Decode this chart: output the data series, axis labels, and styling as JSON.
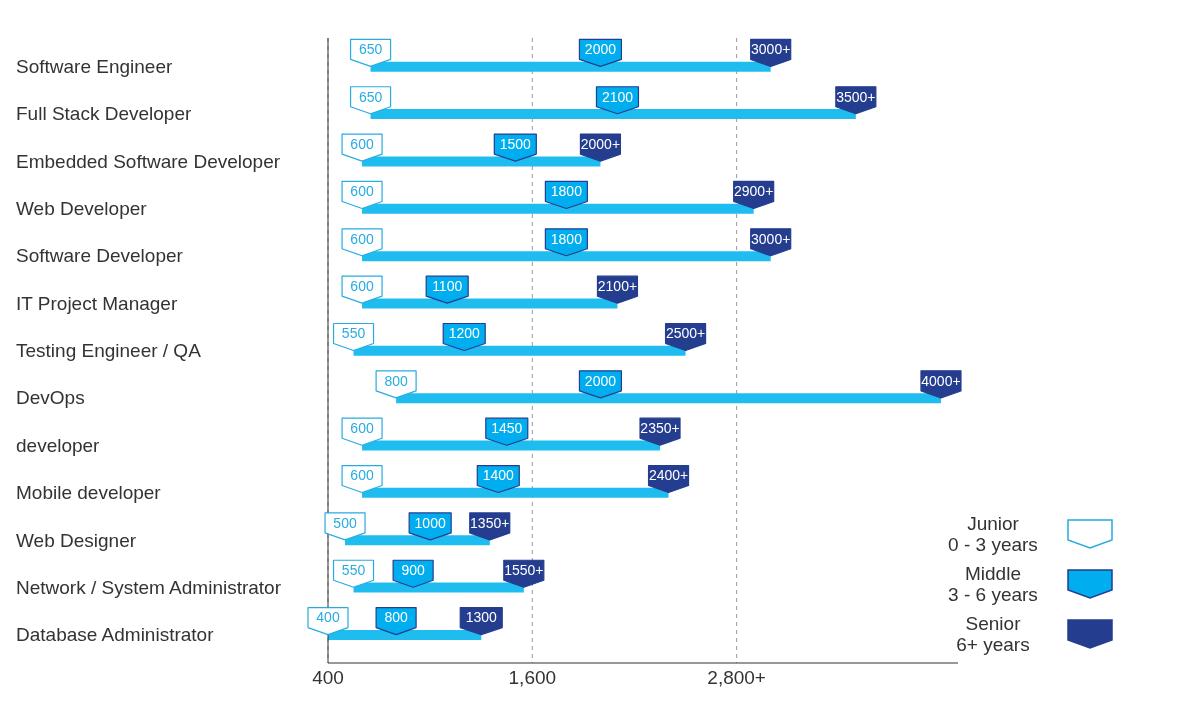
{
  "chart_data": {
    "type": "bar",
    "orientation": "horizontal",
    "categories": [
      "Software Engineer",
      "Full Stack Developer",
      "Embedded Software Developer",
      "Web Developer",
      "Software Developer",
      "IT Project Manager",
      "Testing Engineer / QA",
      "DevOps",
      "developer",
      "Mobile developer",
      "Web Designer",
      "Network / System Administrator",
      "Database Administrator"
    ],
    "series": [
      {
        "type": "bar",
        "color": "#1fbdef",
        "base": [
          650,
          650,
          600,
          600,
          600,
          600,
          550,
          800,
          600,
          600,
          500,
          550,
          400
        ],
        "values": [
          2350,
          2850,
          1400,
          2300,
          2400,
          1500,
          1950,
          3200,
          1750,
          1800,
          850,
          1000,
          900
        ]
      },
      {
        "type": "scatter",
        "name": "Junior\n0 - 3 years",
        "color": "#ffffff",
        "values": [
          650,
          650,
          600,
          600,
          600,
          600,
          550,
          800,
          600,
          600,
          500,
          550,
          400
        ],
        "value_labels": [
          "650",
          "650",
          "600",
          "600",
          "600",
          "600",
          "550",
          "800",
          "600",
          "600",
          "500",
          "550",
          "400"
        ]
      },
      {
        "type": "scatter",
        "name": "Middle\n3 - 6 years",
        "color": "#00aeef",
        "values": [
          2000,
          2100,
          1500,
          1800,
          1800,
          1100,
          1200,
          2000,
          1450,
          1400,
          1000,
          900,
          800
        ],
        "value_labels": [
          "2000",
          "2100",
          "1500",
          "1800",
          "1800",
          "1100",
          "1200",
          "2000",
          "1450",
          "1400",
          "1000",
          "900",
          "800"
        ]
      },
      {
        "type": "scatter",
        "name": "Senior\n6+ years",
        "color": "#253d8f",
        "values": [
          3000,
          3500,
          2000,
          2900,
          3000,
          2100,
          2500,
          4000,
          2350,
          2400,
          1350,
          1550,
          1300
        ],
        "value_labels": [
          null,
          null,
          null,
          null,
          null,
          null,
          null,
          null,
          null,
          null,
          null,
          null,
          "1300"
        ]
      }
    ],
    "annotations": [
      {
        "text": "3000+",
        "x": 3000,
        "y": "Software Engineer"
      },
      {
        "text": "3500+",
        "x": 3500,
        "y": "Full Stack Developer"
      },
      {
        "text": "2000+",
        "x": 2000,
        "y": "Embedded Software Developer"
      },
      {
        "text": "2900+",
        "x": 2900,
        "y": "Web Developer"
      },
      {
        "text": "3000+",
        "x": 3000,
        "y": "Software Developer"
      },
      {
        "text": "2100+",
        "x": 2100,
        "y": "IT Project Manager"
      },
      {
        "text": "2500+",
        "x": 2500,
        "y": "Testing Engineer / QA"
      },
      {
        "text": "4000+",
        "x": 4000,
        "y": "DevOps"
      },
      {
        "text": "2350+",
        "x": 2350,
        "y": "developer"
      },
      {
        "text": "2400+",
        "x": 2400,
        "y": "Mobile developer"
      },
      {
        "text": "1350+",
        "x": 1350,
        "y": "Web Designer"
      },
      {
        "text": "1550+",
        "x": 1550,
        "y": "Network / System Administrator"
      }
    ],
    "xlim": [
      400,
      4100
    ],
    "xticks": [
      400,
      {
        "value": 1600,
        "label": "1,600"
      },
      {
        "value": 2800,
        "label": "2,800+"
      }
    ],
    "grid": "x",
    "legend": "bottom right"
  }
}
